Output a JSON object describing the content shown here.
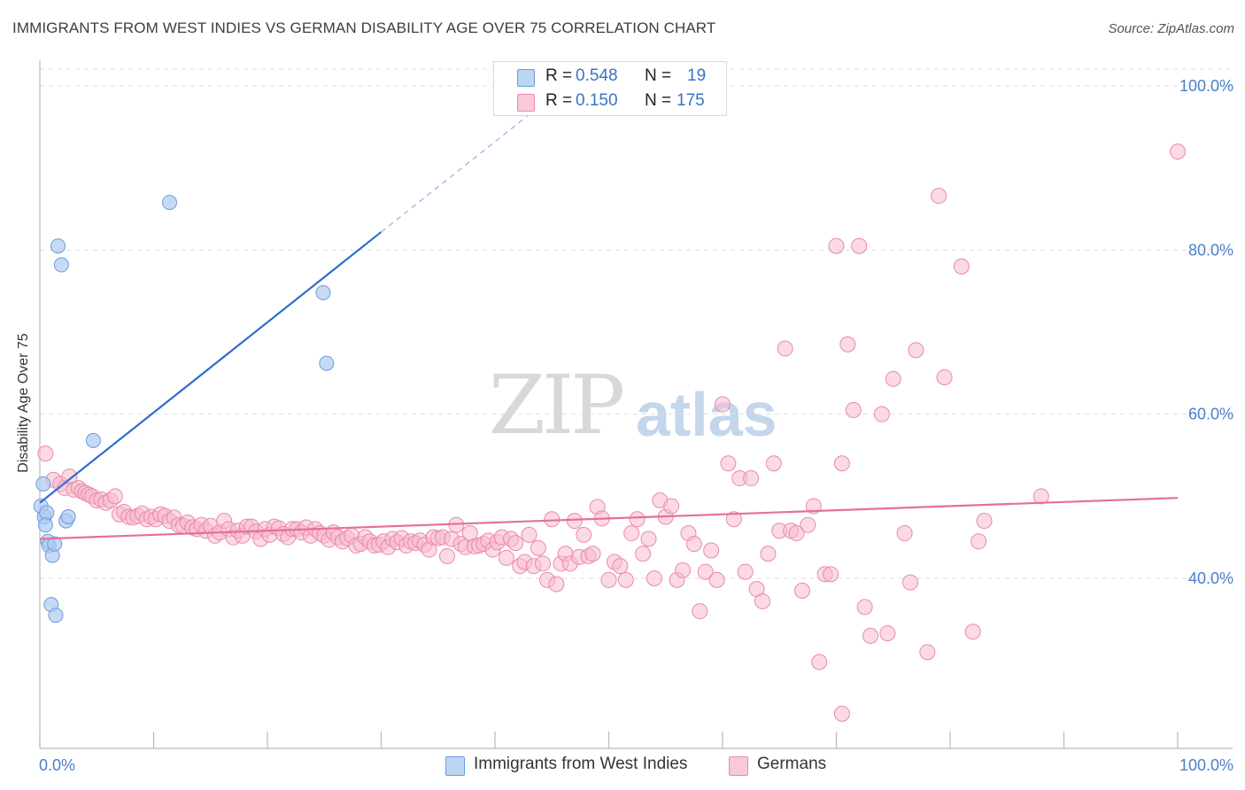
{
  "header": {
    "title": "IMMIGRANTS FROM WEST INDIES VS GERMAN DISABILITY AGE OVER 75 CORRELATION CHART",
    "source": "Source: ZipAtlas.com"
  },
  "watermark": {
    "zip": "ZIP",
    "atlas": "atlas"
  },
  "legend_top": {
    "rows": [
      {
        "r_label": "R =",
        "r_value": "0.548",
        "n_label": "N =",
        "n_value": "19",
        "color": "#aecbf0"
      },
      {
        "r_label": "R =",
        "r_value": "0.150",
        "n_label": "N =",
        "n_value": "175",
        "color": "#f7bcd0"
      }
    ]
  },
  "legend_bottom": [
    {
      "label": "Immigrants from West Indies",
      "color": "#aecbf0"
    },
    {
      "label": "Germans",
      "color": "#f7bcd0"
    }
  ],
  "chart_data": {
    "type": "scatter",
    "title": "IMMIGRANTS FROM WEST INDIES VS GERMAN DISABILITY AGE OVER 75 CORRELATION CHART",
    "xlabel": "",
    "ylabel": "Disability Age Over 75",
    "xlim": [
      0,
      100
    ],
    "ylim": [
      20,
      104
    ],
    "x_tick_labels": [
      "0.0%",
      "100.0%"
    ],
    "y_ticks": [
      40,
      60,
      80,
      100
    ],
    "y_tick_labels": [
      "40.0%",
      "60.0%",
      "80.0%",
      "100.0%"
    ],
    "grid": true,
    "legend": "top-center",
    "colors": {
      "west_indies_fill": "#aecbf0",
      "west_indies_stroke": "#6b9be0",
      "west_indies_line": "#2f6fce",
      "germans_fill": "#f7bcd0",
      "germans_stroke": "#e98aa9",
      "germans_line": "#e4709a",
      "tick_text": "#4a7fc9"
    },
    "series": [
      {
        "name": "Immigrants from West Indies",
        "r": 0.548,
        "n": 19,
        "trend": {
          "x": [
            0,
            30
          ],
          "y": [
            49.2,
            82.2
          ],
          "dashed_to": [
            43,
            96.5
          ]
        },
        "points": [
          [
            0.1,
            48.8
          ],
          [
            0.3,
            51.5
          ],
          [
            0.4,
            47.5
          ],
          [
            0.6,
            48.0
          ],
          [
            0.7,
            44.5
          ],
          [
            0.8,
            44.0
          ],
          [
            1.0,
            36.8
          ],
          [
            1.1,
            42.8
          ],
          [
            1.3,
            44.2
          ],
          [
            1.4,
            35.5
          ],
          [
            1.6,
            80.5
          ],
          [
            1.9,
            78.2
          ],
          [
            2.3,
            47.0
          ],
          [
            2.5,
            47.5
          ],
          [
            4.7,
            56.8
          ],
          [
            11.4,
            85.8
          ],
          [
            24.9,
            74.8
          ],
          [
            25.2,
            66.2
          ],
          [
            0.5,
            46.5
          ]
        ]
      },
      {
        "name": "Germans",
        "r": 0.15,
        "n": 175,
        "trend": {
          "x": [
            0,
            100
          ],
          "y": [
            44.8,
            49.8
          ]
        },
        "points": [
          [
            0.5,
            55.2
          ],
          [
            1.2,
            52.0
          ],
          [
            1.8,
            51.5
          ],
          [
            2.2,
            51.0
          ],
          [
            2.6,
            52.4
          ],
          [
            3.0,
            50.8
          ],
          [
            3.4,
            51.0
          ],
          [
            3.7,
            50.6
          ],
          [
            4.0,
            50.4
          ],
          [
            4.3,
            50.2
          ],
          [
            4.6,
            50.0
          ],
          [
            5.0,
            49.5
          ],
          [
            5.4,
            49.6
          ],
          [
            5.8,
            49.2
          ],
          [
            6.2,
            49.5
          ],
          [
            6.6,
            50.0
          ],
          [
            7.0,
            47.8
          ],
          [
            7.4,
            48.1
          ],
          [
            7.8,
            47.5
          ],
          [
            8.2,
            47.4
          ],
          [
            8.6,
            47.6
          ],
          [
            9.0,
            47.9
          ],
          [
            9.4,
            47.2
          ],
          [
            9.8,
            47.5
          ],
          [
            10.2,
            47.2
          ],
          [
            10.6,
            47.8
          ],
          [
            11.0,
            47.6
          ],
          [
            11.4,
            47.0
          ],
          [
            11.8,
            47.4
          ],
          [
            12.2,
            46.5
          ],
          [
            12.6,
            46.4
          ],
          [
            13.0,
            46.8
          ],
          [
            13.4,
            46.2
          ],
          [
            13.8,
            46.0
          ],
          [
            14.2,
            46.5
          ],
          [
            14.6,
            45.8
          ],
          [
            15.0,
            46.4
          ],
          [
            15.4,
            45.2
          ],
          [
            15.8,
            45.6
          ],
          [
            16.2,
            47.0
          ],
          [
            16.6,
            46.0
          ],
          [
            17.0,
            45.0
          ],
          [
            17.4,
            45.8
          ],
          [
            17.8,
            45.2
          ],
          [
            18.2,
            46.3
          ],
          [
            18.6,
            46.3
          ],
          [
            19.0,
            45.7
          ],
          [
            19.4,
            44.8
          ],
          [
            19.8,
            46.0
          ],
          [
            20.2,
            45.3
          ],
          [
            20.6,
            46.3
          ],
          [
            21.0,
            46.1
          ],
          [
            21.4,
            45.4
          ],
          [
            21.8,
            45.0
          ],
          [
            22.2,
            46.0
          ],
          [
            22.6,
            46.0
          ],
          [
            23.0,
            45.6
          ],
          [
            23.4,
            46.2
          ],
          [
            23.8,
            45.2
          ],
          [
            24.2,
            46.0
          ],
          [
            24.6,
            45.5
          ],
          [
            25.0,
            45.2
          ],
          [
            25.4,
            44.7
          ],
          [
            25.8,
            45.6
          ],
          [
            26.2,
            45.0
          ],
          [
            26.6,
            44.5
          ],
          [
            27.0,
            44.9
          ],
          [
            27.4,
            45.2
          ],
          [
            27.8,
            44.0
          ],
          [
            28.2,
            44.2
          ],
          [
            28.6,
            45.0
          ],
          [
            29.0,
            44.5
          ],
          [
            29.4,
            44.0
          ],
          [
            29.8,
            44.1
          ],
          [
            30.2,
            44.5
          ],
          [
            30.6,
            43.8
          ],
          [
            31.0,
            44.8
          ],
          [
            31.4,
            44.4
          ],
          [
            31.8,
            44.9
          ],
          [
            32.2,
            44.0
          ],
          [
            32.6,
            44.5
          ],
          [
            33.0,
            44.3
          ],
          [
            33.4,
            44.6
          ],
          [
            33.8,
            44.1
          ],
          [
            34.2,
            43.5
          ],
          [
            34.6,
            45.0
          ],
          [
            35.0,
            44.9
          ],
          [
            35.4,
            45.0
          ],
          [
            35.8,
            42.7
          ],
          [
            36.2,
            44.8
          ],
          [
            36.6,
            46.5
          ],
          [
            37.0,
            44.2
          ],
          [
            37.4,
            43.8
          ],
          [
            37.8,
            45.5
          ],
          [
            38.2,
            43.9
          ],
          [
            38.6,
            44.0
          ],
          [
            39.0,
            44.2
          ],
          [
            39.4,
            44.6
          ],
          [
            39.8,
            43.5
          ],
          [
            40.2,
            44.4
          ],
          [
            40.6,
            45.0
          ],
          [
            41.0,
            42.5
          ],
          [
            41.4,
            44.8
          ],
          [
            41.8,
            44.3
          ],
          [
            42.2,
            41.5
          ],
          [
            42.6,
            42.0
          ],
          [
            43.0,
            45.3
          ],
          [
            43.4,
            41.5
          ],
          [
            43.8,
            43.7
          ],
          [
            44.2,
            41.8
          ],
          [
            44.6,
            39.8
          ],
          [
            45.0,
            47.2
          ],
          [
            45.4,
            39.3
          ],
          [
            45.8,
            41.8
          ],
          [
            46.2,
            43.0
          ],
          [
            46.6,
            41.8
          ],
          [
            47.0,
            47.0
          ],
          [
            47.4,
            42.6
          ],
          [
            47.8,
            45.3
          ],
          [
            48.2,
            42.7
          ],
          [
            48.6,
            43.0
          ],
          [
            49.0,
            48.7
          ],
          [
            49.4,
            47.3
          ],
          [
            50.0,
            39.8
          ],
          [
            50.5,
            42.0
          ],
          [
            51.0,
            41.5
          ],
          [
            51.5,
            39.8
          ],
          [
            52.0,
            45.5
          ],
          [
            52.5,
            47.2
          ],
          [
            53.0,
            43.0
          ],
          [
            53.5,
            44.8
          ],
          [
            54.0,
            40.0
          ],
          [
            54.5,
            49.5
          ],
          [
            55.0,
            47.5
          ],
          [
            55.5,
            48.8
          ],
          [
            56.0,
            39.8
          ],
          [
            56.5,
            41.0
          ],
          [
            57.0,
            45.5
          ],
          [
            57.5,
            44.2
          ],
          [
            58.0,
            36.0
          ],
          [
            58.5,
            40.8
          ],
          [
            59.0,
            43.4
          ],
          [
            59.5,
            39.8
          ],
          [
            60.0,
            61.2
          ],
          [
            60.5,
            54.0
          ],
          [
            61.0,
            47.2
          ],
          [
            61.5,
            52.2
          ],
          [
            62.0,
            40.8
          ],
          [
            62.5,
            52.2
          ],
          [
            63.0,
            38.7
          ],
          [
            63.5,
            37.2
          ],
          [
            64.0,
            43.0
          ],
          [
            64.5,
            54.0
          ],
          [
            65.0,
            45.8
          ],
          [
            65.5,
            68.0
          ],
          [
            66.0,
            45.8
          ],
          [
            66.5,
            45.5
          ],
          [
            67.0,
            38.5
          ],
          [
            67.5,
            46.5
          ],
          [
            68.0,
            48.8
          ],
          [
            68.5,
            29.8
          ],
          [
            69.0,
            40.5
          ],
          [
            69.5,
            40.5
          ],
          [
            70.0,
            80.5
          ],
          [
            70.5,
            54.0
          ],
          [
            71.0,
            68.5
          ],
          [
            71.5,
            60.5
          ],
          [
            72.0,
            80.5
          ],
          [
            72.5,
            36.5
          ],
          [
            73.0,
            33.0
          ],
          [
            74.0,
            60.0
          ],
          [
            74.5,
            33.3
          ],
          [
            75.0,
            64.3
          ],
          [
            76.0,
            45.5
          ],
          [
            76.5,
            39.5
          ],
          [
            77.0,
            67.8
          ],
          [
            78.0,
            31.0
          ],
          [
            79.0,
            86.6
          ],
          [
            79.5,
            64.5
          ],
          [
            81.0,
            78.0
          ],
          [
            82.0,
            33.5
          ],
          [
            82.5,
            44.5
          ],
          [
            83.0,
            47.0
          ],
          [
            88.0,
            50.0
          ],
          [
            100.0,
            92.0
          ],
          [
            70.5,
            23.5
          ]
        ]
      }
    ]
  }
}
